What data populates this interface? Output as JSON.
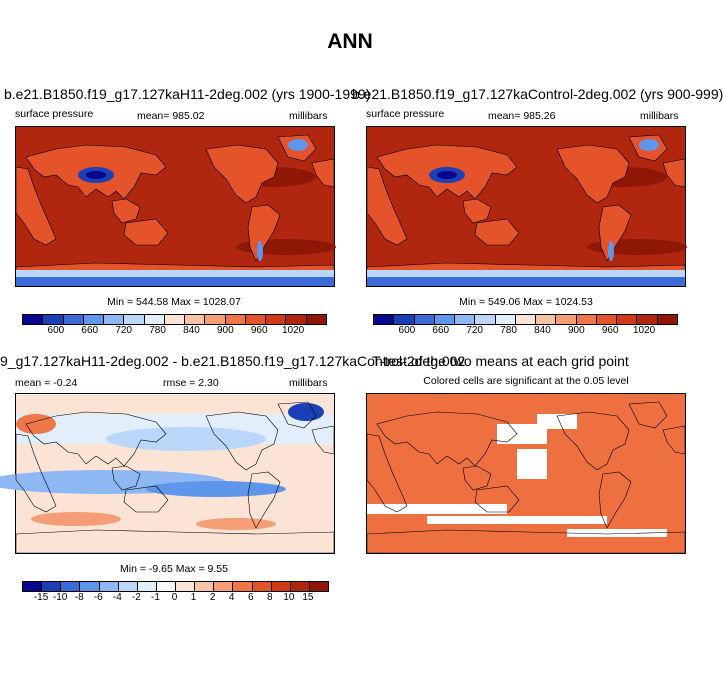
{
  "chart_data": {
    "type": "heatmap",
    "title": "ANN",
    "panels": [
      {
        "id": "case",
        "title": "b.e21.B1850.f19_g17.127kaH11-2deg.002 (yrs 1900-1999)",
        "left_label": "surface pressure",
        "center_label": "mean= 985.02",
        "right_label": "millibars",
        "minmax": "Min = 544.58 Max = 1028.07",
        "colorbar_ticks": [
          "600",
          "660",
          "720",
          "780",
          "840",
          "900",
          "960",
          "1020"
        ]
      },
      {
        "id": "control",
        "title": "b.e21.B1850.f19_g17.127kaControl-2deg.002 (yrs 900-999)",
        "left_label": "surface pressure",
        "center_label": "mean= 985.26",
        "right_label": "millibars",
        "minmax": "Min = 549.06 Max = 1024.53",
        "colorbar_ticks": [
          "600",
          "660",
          "720",
          "780",
          "840",
          "900",
          "960",
          "1020"
        ]
      },
      {
        "id": "difference",
        "title": "9_g17.127kaH11-2deg.002 - b.e21.B1850.f19_g17.127kaControl-2deg.002",
        "left_label": "mean =  -0.24",
        "center_label": "rmse =   2.30",
        "right_label": "millibars",
        "minmax": "Min =  -9.65 Max =   9.55",
        "colorbar_ticks": [
          "-15",
          "-10",
          "-8",
          "-6",
          "-4",
          "-2",
          "-1",
          "0",
          "1",
          "2",
          "4",
          "6",
          "8",
          "10",
          "15"
        ]
      },
      {
        "id": "ttest",
        "title": "T-test of the two means at each grid point",
        "subtitle": "Colored cells are significant at the 0.05 level"
      }
    ],
    "colorscale_absolute": [
      "#08088c",
      "#1b3fb5",
      "#3a6bd8",
      "#5f95ea",
      "#8db8f3",
      "#bad6f9",
      "#e3eefb",
      "#fbe4d6",
      "#f9c3a5",
      "#f59d74",
      "#ef7648",
      "#e5532b",
      "#cf3a1b",
      "#b0260f",
      "#8e1805"
    ],
    "colorscale_difference": [
      "#08088c",
      "#1b3fb5",
      "#3a6bd8",
      "#5f95ea",
      "#8db8f3",
      "#bad6f9",
      "#e3eefb",
      "#f7f7f7",
      "#fbe4d6",
      "#f9c3a5",
      "#f59d74",
      "#ef7648",
      "#e5532b",
      "#cf3a1b",
      "#b0260f",
      "#8e1805"
    ],
    "significance_color": "#ee7040"
  }
}
